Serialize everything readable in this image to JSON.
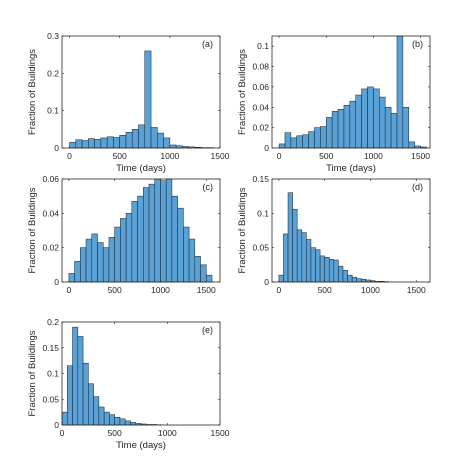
{
  "chart_data": [
    {
      "type": "bar",
      "panel_label": "(a)",
      "xlabel": "Time (days)",
      "ylabel": "Fraction of Buildings",
      "xlim": [
        -75,
        1500
      ],
      "ylim": [
        0,
        0.3
      ],
      "xticks": [
        0,
        500,
        1000,
        1500
      ],
      "yticks": [
        0,
        0.1,
        0.2,
        0.3
      ],
      "xtick_labels": [
        "0",
        "500",
        "1000",
        "1500"
      ],
      "ytick_labels": [
        "0",
        "0.1",
        "0.2",
        "0.3"
      ],
      "bin_start": 0,
      "bin_width": 62.5,
      "values": [
        0.015,
        0.022,
        0.02,
        0.025,
        0.023,
        0.027,
        0.03,
        0.028,
        0.034,
        0.042,
        0.05,
        0.062,
        0.26,
        0.055,
        0.04,
        0.027,
        0.008,
        0.006,
        0.004,
        0.003,
        0.002,
        0.001,
        0.001
      ]
    },
    {
      "type": "bar",
      "panel_label": "(b)",
      "xlabel": "Time (days)",
      "ylabel": "Fraction of Buildings",
      "xlim": [
        -75,
        1600
      ],
      "ylim": [
        0,
        0.11
      ],
      "xticks": [
        0,
        500,
        1000,
        1500
      ],
      "yticks": [
        0,
        0.02,
        0.04,
        0.06,
        0.08,
        0.1
      ],
      "xtick_labels": [
        "0",
        "500",
        "1000",
        "1500"
      ],
      "ytick_labels": [
        "0",
        "0.02",
        "0.04",
        "0.06",
        "0.08",
        "0.1"
      ],
      "bin_start": 0,
      "bin_width": 62.5,
      "values": [
        0.004,
        0.015,
        0.01,
        0.012,
        0.013,
        0.016,
        0.02,
        0.021,
        0.03,
        0.036,
        0.038,
        0.042,
        0.046,
        0.052,
        0.058,
        0.06,
        0.058,
        0.05,
        0.04,
        0.034,
        0.11,
        0.04,
        0.006,
        0.002,
        0.001
      ]
    },
    {
      "type": "bar",
      "panel_label": "(c)",
      "xlabel": "",
      "ylabel": "Fraction of Buildings",
      "xlim": [
        -75,
        1650
      ],
      "ylim": [
        0,
        0.06
      ],
      "xticks": [
        0,
        500,
        1000,
        1500
      ],
      "yticks": [
        0,
        0.02,
        0.04,
        0.06
      ],
      "xtick_labels": [
        "0",
        "500",
        "1000",
        "1500"
      ],
      "ytick_labels": [
        "0",
        "0.02",
        "0.04",
        "0.06"
      ],
      "bin_start": 0,
      "bin_width": 62.5,
      "values": [
        0.005,
        0.012,
        0.02,
        0.025,
        0.028,
        0.023,
        0.02,
        0.026,
        0.032,
        0.037,
        0.04,
        0.047,
        0.05,
        0.055,
        0.057,
        0.06,
        0.059,
        0.06,
        0.05,
        0.043,
        0.032,
        0.025,
        0.015,
        0.01,
        0.004
      ]
    },
    {
      "type": "bar",
      "panel_label": "(d)",
      "xlabel": "",
      "ylabel": "Fraction of Buildings",
      "xlim": [
        -75,
        1650
      ],
      "ylim": [
        0,
        0.15
      ],
      "xticks": [
        0,
        500,
        1000,
        1500
      ],
      "yticks": [
        0,
        0.05,
        0.1,
        0.15
      ],
      "xtick_labels": [
        "0",
        "500",
        "1000",
        "1500"
      ],
      "ytick_labels": [
        "0",
        "0.05",
        "0.1",
        "0.15"
      ],
      "bin_start": 0,
      "bin_width": 50,
      "values": [
        0.01,
        0.07,
        0.13,
        0.106,
        0.076,
        0.072,
        0.062,
        0.05,
        0.047,
        0.038,
        0.036,
        0.033,
        0.032,
        0.023,
        0.017,
        0.01,
        0.007,
        0.005,
        0.004,
        0.003,
        0.002,
        0.001,
        0.001,
        0.0005
      ]
    },
    {
      "type": "bar",
      "panel_label": "(e)",
      "xlabel": "Time (days)",
      "ylabel": "Fraction of Buildings",
      "xlim": [
        0,
        1500
      ],
      "ylim": [
        0,
        0.2
      ],
      "xticks": [
        0,
        500,
        1000,
        1500
      ],
      "yticks": [
        0,
        0.05,
        0.1,
        0.15,
        0.2
      ],
      "xtick_labels": [
        "0",
        "500",
        "1000",
        "1500"
      ],
      "ytick_labels": [
        "0",
        "0.05",
        "0.1",
        "0.15",
        "0.2"
      ],
      "bin_start": 0,
      "bin_width": 50,
      "values": [
        0.025,
        0.115,
        0.19,
        0.172,
        0.12,
        0.08,
        0.055,
        0.035,
        0.025,
        0.02,
        0.015,
        0.012,
        0.008,
        0.005,
        0.003,
        0.002,
        0.001,
        0.001,
        0.0005
      ]
    }
  ]
}
